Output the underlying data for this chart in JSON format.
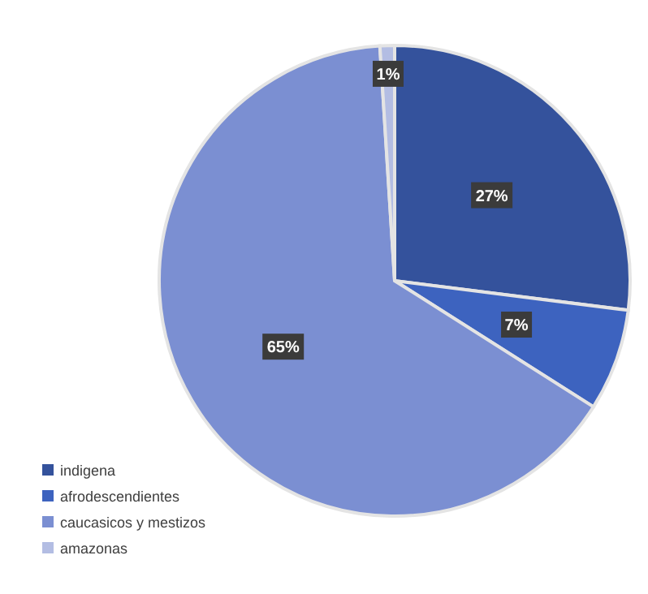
{
  "chart_data": {
    "type": "pie",
    "categories": [
      "indigena",
      "afrodescendientes",
      "caucasicos y mestizos",
      "amazonas"
    ],
    "values": [
      27,
      7,
      65,
      1
    ],
    "colors": [
      "#34529c",
      "#3d63bf",
      "#7b8fd2",
      "#b3bde3"
    ],
    "value_labels": [
      "27%",
      "7%",
      "65%",
      "1%"
    ],
    "legend": "bottom left"
  }
}
